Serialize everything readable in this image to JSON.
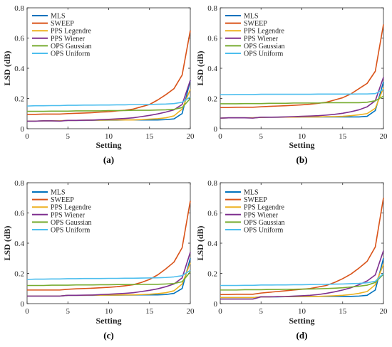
{
  "colors": {
    "MLS": "#0072BD",
    "SWEEP": "#D95319",
    "PPS Legendre": "#EDB120",
    "PPS Wiener": "#7E2F8E",
    "OPS Gaussian": "#77AC30",
    "OPS Uniform": "#4DBEEE",
    "axis": "#262626"
  },
  "chart_data": [
    {
      "panel": "(a)",
      "type": "line",
      "xlabel": "Setting",
      "ylabel": "LSD (dB)",
      "xlim": [
        0,
        20
      ],
      "ylim": [
        0,
        0.8
      ],
      "xticks": [
        "0",
        "5",
        "10",
        "15",
        "20"
      ],
      "yticks": [
        "0",
        "0.2",
        "0.4",
        "0.6",
        "0.8"
      ],
      "legend": "top-left",
      "grid": false,
      "x": [
        0,
        1,
        2,
        3,
        4,
        5,
        6,
        7,
        8,
        9,
        10,
        11,
        12,
        13,
        14,
        15,
        16,
        17,
        18,
        19,
        20
      ],
      "series": [
        {
          "name": "MLS",
          "values": [
            0.05,
            0.05,
            0.052,
            0.052,
            0.052,
            0.055,
            0.055,
            0.055,
            0.056,
            0.056,
            0.057,
            0.057,
            0.058,
            0.058,
            0.058,
            0.058,
            0.058,
            0.06,
            0.065,
            0.1,
            0.32
          ]
        },
        {
          "name": "SWEEP",
          "values": [
            0.095,
            0.095,
            0.097,
            0.097,
            0.097,
            0.1,
            0.102,
            0.104,
            0.106,
            0.11,
            0.112,
            0.118,
            0.122,
            0.13,
            0.145,
            0.16,
            0.19,
            0.225,
            0.265,
            0.355,
            0.65
          ]
        },
        {
          "name": "PPS Legendre",
          "values": [
            0.05,
            0.05,
            0.052,
            0.052,
            0.052,
            0.055,
            0.055,
            0.056,
            0.057,
            0.057,
            0.058,
            0.058,
            0.058,
            0.058,
            0.06,
            0.063,
            0.066,
            0.072,
            0.085,
            0.13,
            0.26
          ]
        },
        {
          "name": "PPS Wiener",
          "values": [
            0.05,
            0.05,
            0.052,
            0.052,
            0.05,
            0.055,
            0.055,
            0.056,
            0.057,
            0.06,
            0.062,
            0.065,
            0.068,
            0.072,
            0.08,
            0.088,
            0.098,
            0.11,
            0.125,
            0.16,
            0.32
          ]
        },
        {
          "name": "OPS Gaussian",
          "values": [
            0.115,
            0.115,
            0.115,
            0.116,
            0.116,
            0.116,
            0.118,
            0.118,
            0.118,
            0.118,
            0.12,
            0.12,
            0.12,
            0.122,
            0.122,
            0.122,
            0.124,
            0.125,
            0.128,
            0.14,
            0.2
          ]
        },
        {
          "name": "OPS Uniform",
          "values": [
            0.15,
            0.152,
            0.152,
            0.153,
            0.153,
            0.155,
            0.155,
            0.156,
            0.156,
            0.157,
            0.157,
            0.158,
            0.158,
            0.16,
            0.16,
            0.16,
            0.162,
            0.163,
            0.166,
            0.175,
            0.21
          ]
        }
      ]
    },
    {
      "panel": "(b)",
      "type": "line",
      "xlabel": "Setting",
      "ylabel": "LSD (dB)",
      "xlim": [
        0,
        20
      ],
      "ylim": [
        0,
        0.8
      ],
      "xticks": [
        "0",
        "5",
        "10",
        "15",
        "20"
      ],
      "yticks": [
        "0",
        "0.2",
        "0.4",
        "0.6",
        "0.8"
      ],
      "legend": "top-left",
      "grid": false,
      "x": [
        0,
        1,
        2,
        3,
        4,
        5,
        6,
        7,
        8,
        9,
        10,
        11,
        12,
        13,
        14,
        15,
        16,
        17,
        18,
        19,
        20
      ],
      "series": [
        {
          "name": "MLS",
          "values": [
            0.07,
            0.072,
            0.072,
            0.072,
            0.072,
            0.075,
            0.076,
            0.076,
            0.077,
            0.077,
            0.078,
            0.078,
            0.078,
            0.078,
            0.078,
            0.078,
            0.078,
            0.078,
            0.082,
            0.12,
            0.31
          ]
        },
        {
          "name": "SWEEP",
          "values": [
            0.14,
            0.14,
            0.142,
            0.142,
            0.142,
            0.145,
            0.148,
            0.15,
            0.152,
            0.155,
            0.158,
            0.162,
            0.168,
            0.175,
            0.19,
            0.205,
            0.23,
            0.265,
            0.3,
            0.38,
            0.69
          ]
        },
        {
          "name": "PPS Legendre",
          "values": [
            0.07,
            0.072,
            0.072,
            0.072,
            0.072,
            0.075,
            0.076,
            0.076,
            0.077,
            0.077,
            0.078,
            0.078,
            0.078,
            0.08,
            0.08,
            0.082,
            0.086,
            0.092,
            0.1,
            0.135,
            0.27
          ]
        },
        {
          "name": "PPS Wiener",
          "values": [
            0.07,
            0.072,
            0.072,
            0.072,
            0.07,
            0.076,
            0.076,
            0.077,
            0.078,
            0.08,
            0.082,
            0.084,
            0.086,
            0.09,
            0.095,
            0.102,
            0.112,
            0.125,
            0.145,
            0.185,
            0.34
          ]
        },
        {
          "name": "OPS Gaussian",
          "values": [
            0.165,
            0.165,
            0.165,
            0.166,
            0.166,
            0.166,
            0.168,
            0.168,
            0.168,
            0.17,
            0.17,
            0.17,
            0.17,
            0.172,
            0.172,
            0.172,
            0.172,
            0.172,
            0.175,
            0.185,
            0.215
          ]
        },
        {
          "name": "OPS Uniform",
          "values": [
            0.225,
            0.225,
            0.226,
            0.226,
            0.226,
            0.228,
            0.228,
            0.228,
            0.228,
            0.228,
            0.228,
            0.228,
            0.229,
            0.229,
            0.229,
            0.229,
            0.229,
            0.23,
            0.23,
            0.232,
            0.26
          ]
        }
      ]
    },
    {
      "panel": "(c)",
      "type": "line",
      "xlabel": "Setting",
      "ylabel": "LSD (dB)",
      "xlim": [
        0,
        20
      ],
      "ylim": [
        0,
        0.8
      ],
      "xticks": [
        "0",
        "5",
        "10",
        "15",
        "20"
      ],
      "yticks": [
        "0",
        "0.2",
        "0.4",
        "0.6",
        "0.8"
      ],
      "legend": "top-left",
      "grid": false,
      "x": [
        0,
        1,
        2,
        3,
        4,
        5,
        6,
        7,
        8,
        9,
        10,
        11,
        12,
        13,
        14,
        15,
        16,
        17,
        18,
        19,
        20
      ],
      "series": [
        {
          "name": "MLS",
          "values": [
            0.05,
            0.05,
            0.05,
            0.05,
            0.05,
            0.055,
            0.055,
            0.055,
            0.055,
            0.056,
            0.056,
            0.056,
            0.057,
            0.057,
            0.058,
            0.058,
            0.058,
            0.06,
            0.068,
            0.1,
            0.3
          ]
        },
        {
          "name": "SWEEP",
          "values": [
            0.09,
            0.09,
            0.09,
            0.09,
            0.09,
            0.095,
            0.098,
            0.1,
            0.102,
            0.105,
            0.108,
            0.112,
            0.118,
            0.125,
            0.14,
            0.16,
            0.19,
            0.23,
            0.275,
            0.37,
            0.68
          ]
        },
        {
          "name": "PPS Legendre",
          "values": [
            0.05,
            0.05,
            0.05,
            0.05,
            0.05,
            0.055,
            0.055,
            0.055,
            0.056,
            0.056,
            0.057,
            0.057,
            0.058,
            0.058,
            0.06,
            0.062,
            0.066,
            0.072,
            0.085,
            0.13,
            0.27
          ]
        },
        {
          "name": "PPS Wiener",
          "values": [
            0.05,
            0.05,
            0.05,
            0.05,
            0.05,
            0.055,
            0.055,
            0.056,
            0.057,
            0.06,
            0.062,
            0.065,
            0.068,
            0.072,
            0.08,
            0.088,
            0.098,
            0.112,
            0.13,
            0.17,
            0.34
          ]
        },
        {
          "name": "OPS Gaussian",
          "values": [
            0.12,
            0.12,
            0.12,
            0.122,
            0.122,
            0.122,
            0.124,
            0.124,
            0.124,
            0.125,
            0.125,
            0.126,
            0.126,
            0.127,
            0.127,
            0.128,
            0.128,
            0.13,
            0.133,
            0.145,
            0.21
          ]
        },
        {
          "name": "OPS Uniform",
          "values": [
            0.16,
            0.162,
            0.162,
            0.163,
            0.163,
            0.165,
            0.165,
            0.166,
            0.166,
            0.166,
            0.167,
            0.167,
            0.168,
            0.168,
            0.169,
            0.17,
            0.171,
            0.173,
            0.177,
            0.185,
            0.22
          ]
        }
      ]
    },
    {
      "panel": "(d)",
      "type": "line",
      "xlabel": "Setting",
      "ylabel": "LSD (dB)",
      "xlim": [
        0,
        20
      ],
      "ylim": [
        0,
        0.8
      ],
      "xticks": [
        "0",
        "5",
        "10",
        "15",
        "20"
      ],
      "yticks": [
        "0",
        "0.2",
        "0.4",
        "0.6",
        "0.8"
      ],
      "legend": "top-left",
      "grid": false,
      "x": [
        0,
        1,
        2,
        3,
        4,
        5,
        6,
        7,
        8,
        9,
        10,
        11,
        12,
        13,
        14,
        15,
        16,
        17,
        18,
        19,
        20
      ],
      "series": [
        {
          "name": "MLS",
          "values": [
            0.04,
            0.04,
            0.04,
            0.04,
            0.04,
            0.045,
            0.045,
            0.045,
            0.046,
            0.046,
            0.047,
            0.047,
            0.048,
            0.048,
            0.048,
            0.048,
            0.048,
            0.05,
            0.055,
            0.09,
            0.3
          ]
        },
        {
          "name": "SWEEP",
          "values": [
            0.06,
            0.06,
            0.062,
            0.062,
            0.062,
            0.07,
            0.075,
            0.08,
            0.085,
            0.09,
            0.095,
            0.1,
            0.11,
            0.12,
            0.14,
            0.165,
            0.195,
            0.235,
            0.28,
            0.375,
            0.7
          ]
        },
        {
          "name": "PPS Legendre",
          "values": [
            0.04,
            0.04,
            0.04,
            0.04,
            0.04,
            0.045,
            0.045,
            0.046,
            0.046,
            0.047,
            0.047,
            0.048,
            0.048,
            0.05,
            0.052,
            0.055,
            0.06,
            0.068,
            0.08,
            0.125,
            0.26
          ]
        },
        {
          "name": "PPS Wiener",
          "values": [
            0.03,
            0.03,
            0.03,
            0.03,
            0.03,
            0.045,
            0.045,
            0.046,
            0.047,
            0.05,
            0.052,
            0.055,
            0.06,
            0.068,
            0.078,
            0.09,
            0.105,
            0.125,
            0.15,
            0.19,
            0.35
          ]
        },
        {
          "name": "OPS Gaussian",
          "values": [
            0.09,
            0.09,
            0.09,
            0.092,
            0.092,
            0.092,
            0.094,
            0.094,
            0.095,
            0.095,
            0.096,
            0.097,
            0.098,
            0.1,
            0.102,
            0.105,
            0.11,
            0.115,
            0.122,
            0.14,
            0.195
          ]
        },
        {
          "name": "OPS Uniform",
          "values": [
            0.12,
            0.12,
            0.12,
            0.121,
            0.121,
            0.123,
            0.123,
            0.124,
            0.124,
            0.125,
            0.125,
            0.126,
            0.127,
            0.128,
            0.129,
            0.13,
            0.132,
            0.134,
            0.138,
            0.148,
            0.2
          ]
        }
      ]
    }
  ]
}
